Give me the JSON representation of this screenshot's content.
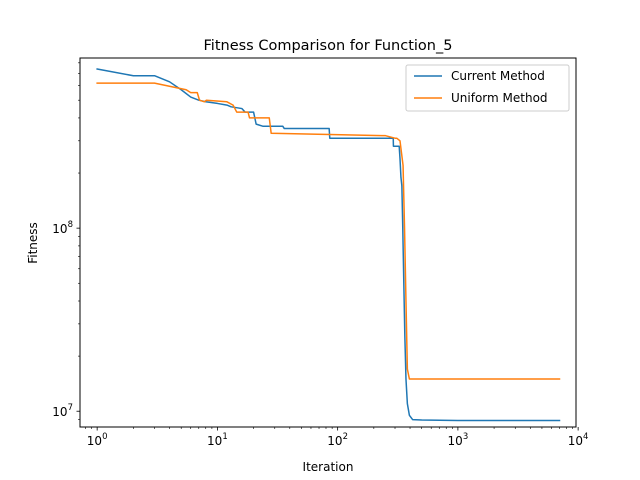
{
  "chart_data": {
    "type": "line",
    "title": "Fitness Comparison for Function_5",
    "xlabel": "Iteration",
    "ylabel": "Fitness",
    "xscale": "log",
    "yscale": "log",
    "xlim": [
      0.72,
      9600
    ],
    "ylim": [
      8200000,
      850000000
    ],
    "x_ticks": [
      {
        "value": 1,
        "base": "10",
        "exp": "0"
      },
      {
        "value": 10,
        "base": "10",
        "exp": "1"
      },
      {
        "value": 100,
        "base": "10",
        "exp": "2"
      },
      {
        "value": 1000,
        "base": "10",
        "exp": "3"
      },
      {
        "value": 10000,
        "base": "10",
        "exp": "4"
      }
    ],
    "y_ticks": [
      {
        "value": 10000000,
        "base": "10",
        "exp": "7"
      },
      {
        "value": 100000000,
        "base": "10",
        "exp": "8"
      }
    ],
    "grid": false,
    "legend_position": "top-right",
    "series": [
      {
        "name": "Current Method",
        "color": "#1f77b4",
        "points": [
          [
            1,
            740000000
          ],
          [
            2,
            680000000
          ],
          [
            3,
            680000000
          ],
          [
            4,
            630000000
          ],
          [
            5,
            570000000
          ],
          [
            6,
            520000000
          ],
          [
            7,
            500000000
          ],
          [
            8,
            490000000
          ],
          [
            10,
            480000000
          ],
          [
            12,
            470000000
          ],
          [
            13,
            460000000
          ],
          [
            16,
            450000000
          ],
          [
            17,
            430000000
          ],
          [
            20,
            430000000
          ],
          [
            21,
            370000000
          ],
          [
            24,
            360000000
          ],
          [
            35,
            360000000
          ],
          [
            36,
            350000000
          ],
          [
            85,
            350000000
          ],
          [
            86,
            310000000
          ],
          [
            290,
            310000000
          ],
          [
            291,
            280000000
          ],
          [
            325,
            280000000
          ],
          [
            330,
            240000000
          ],
          [
            336,
            190000000
          ],
          [
            342,
            170000000
          ],
          [
            348,
            100000000
          ],
          [
            355,
            50000000
          ],
          [
            362,
            26000000
          ],
          [
            370,
            15000000
          ],
          [
            380,
            11000000
          ],
          [
            395,
            9500000
          ],
          [
            420,
            9000000
          ],
          [
            500,
            8950000
          ],
          [
            1000,
            8900000
          ],
          [
            3000,
            8900000
          ],
          [
            7000,
            8900000
          ]
        ]
      },
      {
        "name": "Uniform Method",
        "color": "#ff7f0e",
        "points": [
          [
            1,
            620000000
          ],
          [
            3,
            620000000
          ],
          [
            5.5,
            570000000
          ],
          [
            6,
            550000000
          ],
          [
            6.8,
            550000000
          ],
          [
            7.1,
            500000000
          ],
          [
            7.8,
            490000000
          ],
          [
            8.1,
            500000000
          ],
          [
            12,
            490000000
          ],
          [
            13.5,
            470000000
          ],
          [
            14.5,
            430000000
          ],
          [
            18,
            430000000
          ],
          [
            18.5,
            400000000
          ],
          [
            27,
            400000000
          ],
          [
            28,
            330000000
          ],
          [
            250,
            320000000
          ],
          [
            300,
            310000000
          ],
          [
            310,
            310000000
          ],
          [
            330,
            300000000
          ],
          [
            350,
            220000000
          ],
          [
            360,
            100000000
          ],
          [
            370,
            40000000
          ],
          [
            380,
            17000000
          ],
          [
            395,
            15000000
          ],
          [
            440,
            15000000
          ],
          [
            1000,
            15000000
          ],
          [
            7000,
            15000000
          ]
        ]
      }
    ]
  }
}
